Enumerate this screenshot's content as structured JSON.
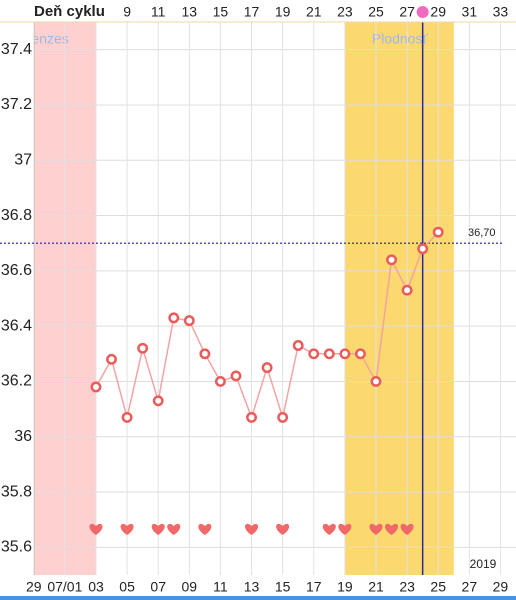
{
  "chart_data": {
    "type": "line",
    "x_label": "Deň cyklu",
    "x": [
      7,
      8,
      9,
      10,
      11,
      12,
      13,
      14,
      15,
      16,
      17,
      18,
      19,
      20,
      21,
      22,
      23,
      24,
      25,
      26,
      27,
      28,
      29
    ],
    "values": [
      36.18,
      36.28,
      36.07,
      36.32,
      36.13,
      36.43,
      36.42,
      36.3,
      36.2,
      36.22,
      36.07,
      36.25,
      36.07,
      36.33,
      36.3,
      36.3,
      36.3,
      36.3,
      36.2,
      36.64,
      36.53,
      36.68,
      36.74
    ],
    "line_color": "#f4a3a3",
    "marker_color": "#e95c5c",
    "bands": [
      {
        "label": "Menzes",
        "range": [
          3,
          7
        ],
        "color": "#ffd0d0"
      },
      {
        "label": "Plodnosť",
        "range": [
          23,
          30
        ],
        "color": "#fbd96e"
      }
    ],
    "cover_line": {
      "value": 36.7,
      "label": "36,70",
      "color": "#1a1aa0"
    },
    "today": 28,
    "today_color": "#2a2aa0",
    "today_dot_color": "#f06ac0",
    "intercourse_days": [
      7,
      9,
      11,
      12,
      14,
      17,
      19,
      22,
      23,
      25,
      26,
      27
    ],
    "heart_color": "#f06868",
    "year": "2019",
    "xlim": [
      0.83,
      34
    ],
    "ylim": [
      35.5,
      37.5
    ],
    "yticks": [
      35.6,
      35.8,
      36,
      36.2,
      36.4,
      36.6,
      36.8,
      37,
      37.2,
      37.4
    ],
    "xticks": [
      {
        "value": 3,
        "label": "29"
      },
      {
        "value": 5,
        "label": "07/01"
      },
      {
        "value": 7,
        "label": "03"
      },
      {
        "value": 9,
        "label": "05"
      },
      {
        "value": 11,
        "label": "07"
      },
      {
        "value": 13,
        "label": "09"
      },
      {
        "value": 15,
        "label": "11"
      },
      {
        "value": 17,
        "label": "13"
      },
      {
        "value": 19,
        "label": "15"
      },
      {
        "value": 21,
        "label": "17"
      },
      {
        "value": 23,
        "label": "19"
      },
      {
        "value": 25,
        "label": "21"
      },
      {
        "value": 27,
        "label": "23"
      },
      {
        "value": 29,
        "label": "25"
      },
      {
        "value": 31,
        "label": "27"
      },
      {
        "value": 33,
        "label": "29"
      }
    ],
    "x2ticks": [
      9,
      11,
      13,
      15,
      17,
      19,
      21,
      23,
      25,
      27,
      29,
      31,
      33
    ],
    "grid": true
  }
}
